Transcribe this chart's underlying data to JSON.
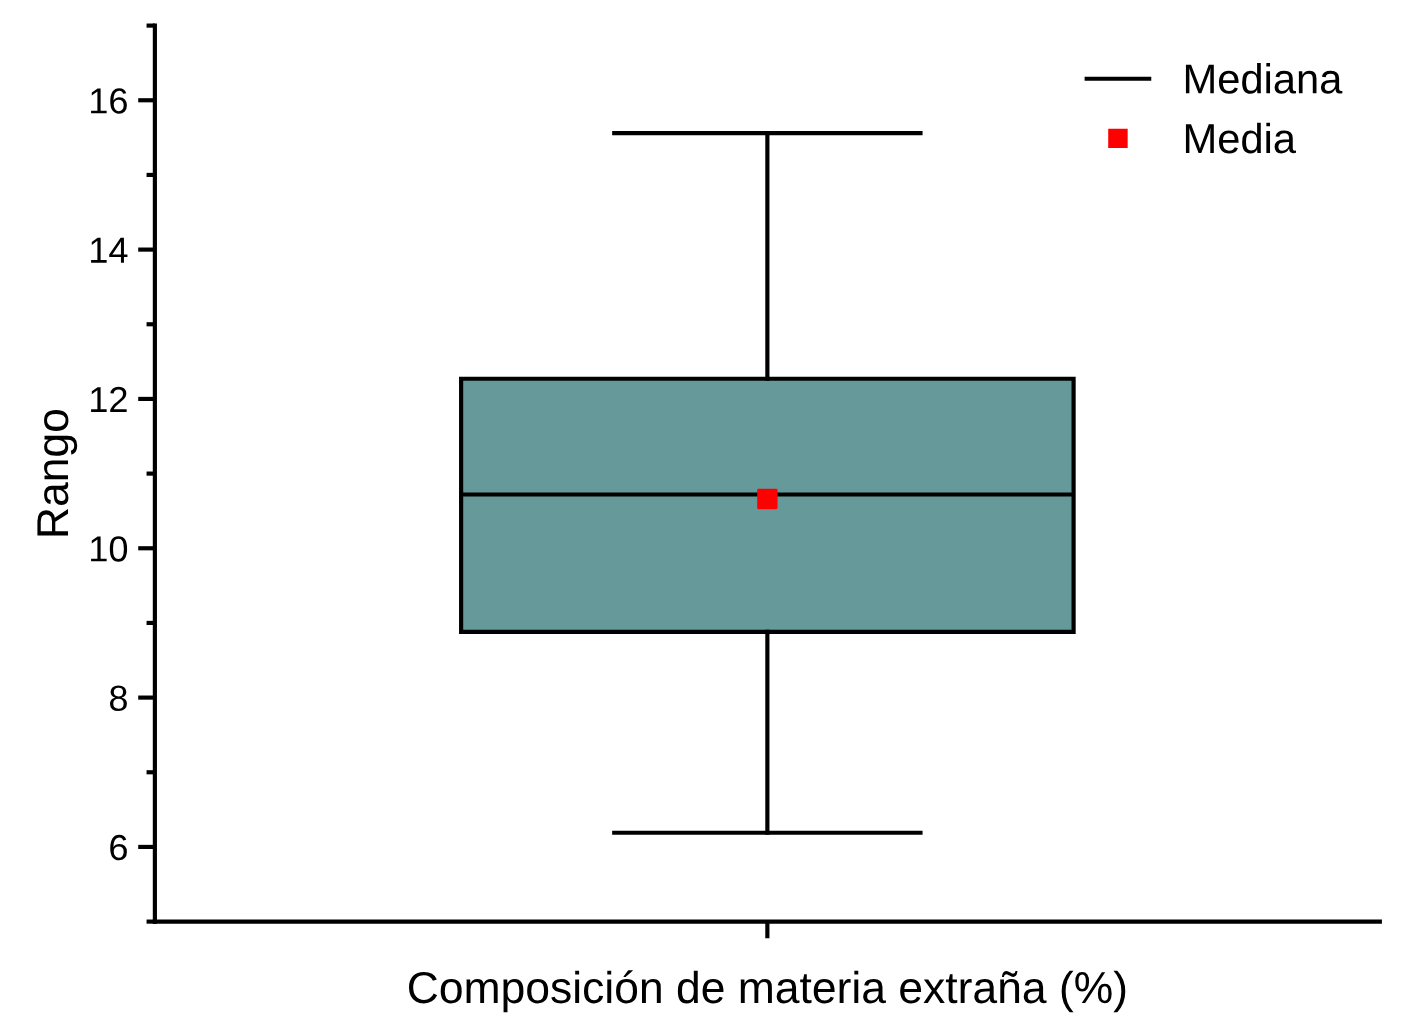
{
  "chart_data": {
    "type": "box",
    "xlabel": "Composición de materia extraña (%)",
    "ylabel": "Rango",
    "categories": [
      null
    ],
    "series": [
      {
        "name": "Mediana",
        "color": "#000000",
        "colors": [
          "#669999"
        ],
        "boxes": [
          {
            "low": 6.19,
            "q1": 8.88,
            "median": 10.72,
            "q3": 12.27,
            "high": 15.56
          }
        ]
      },
      {
        "type": "scatter",
        "name": "Media",
        "color": "#ff0000",
        "values": [
          10.66
        ]
      }
    ],
    "ylim": [
      5,
      17
    ],
    "yticks": [
      6,
      8,
      10,
      12,
      14,
      16
    ],
    "grid": false,
    "legend": "top right",
    "marker": "square"
  }
}
